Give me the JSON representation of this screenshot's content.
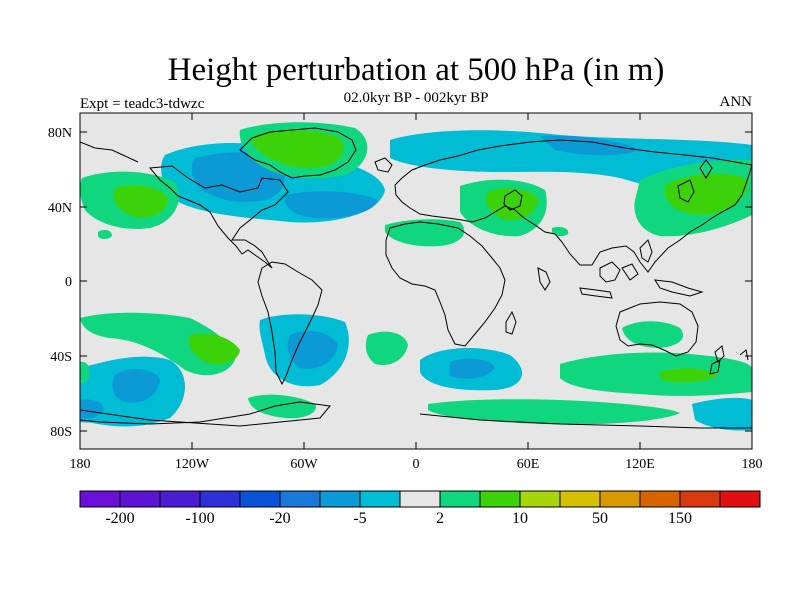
{
  "title": "Height perturbation at 500 hPa (in m)",
  "period": "02.0kyr BP - 002kyr BP",
  "experiment": "Expt = teadc3-tdwzc",
  "season": "ANN",
  "lat_labels": [
    "80N",
    "40N",
    "0",
    "40S",
    "80S"
  ],
  "lon_labels": [
    "180",
    "120W",
    "60W",
    "0",
    "60E",
    "120E",
    "180"
  ],
  "colorbar": {
    "colors": [
      "#6a0fd8",
      "#5a14d2",
      "#4a1ed0",
      "#2f2fd8",
      "#0a52d8",
      "#1a78d8",
      "#0b9ad6",
      "#00bcd4",
      "#e6e6e6",
      "#10d680",
      "#3cd20a",
      "#a6d60a",
      "#d6be00",
      "#d89a00",
      "#d86400",
      "#d83a10",
      "#e01010"
    ],
    "labels": [
      "-200",
      "-100",
      "-20",
      "-5",
      "2",
      "10",
      "50",
      "150"
    ]
  },
  "colors": {
    "background": "#e6e6e6",
    "light_blue": "#00bcd4",
    "blue": "#0b9ad6",
    "dark_blue": "#1a78d8",
    "green": "#10d680",
    "bright_green": "#3cd20a"
  }
}
